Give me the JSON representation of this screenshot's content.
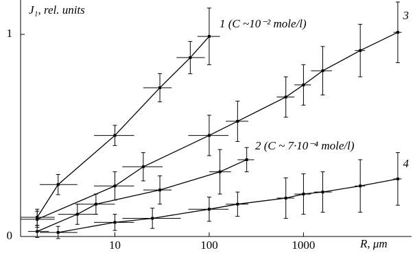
{
  "chart_data": {
    "type": "scatter",
    "y_label": "J₁, rel. units",
    "x_label": "R, μm",
    "xlim": [
      1,
      14000
    ],
    "ylim": [
      0,
      1.17
    ],
    "log_x": true,
    "xticks": [
      10,
      100,
      1000
    ],
    "yticks": [
      0,
      1
    ],
    "series": [
      {
        "name": "1 (C ~10⁻² mole/l)",
        "color": "#000",
        "x": [
          1.5,
          2.5,
          10,
          30,
          63,
          100
        ],
        "values": [
          0.095,
          0.257,
          0.5,
          0.736,
          0.885,
          0.99
        ],
        "yerr": [
          0.04,
          0.05,
          0.05,
          0.07,
          0.08,
          0.14
        ],
        "x_low": [
          1,
          1.6,
          6,
          20,
          45,
          75
        ],
        "x_high": [
          2.3,
          4,
          16,
          40,
          90,
          130
        ]
      },
      {
        "name": "2 (C ~ 7·10⁻⁴ mole/l)",
        "color": "#000",
        "x": [
          1.5,
          4,
          6.3,
          30,
          130,
          250
        ],
        "values": [
          0.025,
          0.11,
          0.16,
          0.23,
          0.32,
          0.38
        ],
        "yerr": [
          0.03,
          0.05,
          0.05,
          0.07,
          0.11,
          0.06
        ],
        "x_low": [
          1.2,
          2.5,
          4,
          20,
          100,
          200
        ],
        "x_high": [
          2,
          6.5,
          10,
          40,
          170,
          300
        ]
      },
      {
        "name": "3",
        "color": "#000",
        "x": [
          1.5,
          10,
          20,
          100,
          200,
          650,
          1000,
          1600,
          4000,
          10000
        ],
        "values": [
          0.085,
          0.25,
          0.345,
          0.5,
          0.57,
          0.69,
          0.75,
          0.82,
          0.92,
          1.01
        ],
        "yerr": [
          0.04,
          0.07,
          0.07,
          0.1,
          0.1,
          0.1,
          0.1,
          0.12,
          0.13,
          0.15
        ],
        "x_low": [
          1,
          6,
          12,
          60,
          150,
          520,
          800,
          1200,
          3500,
          9000
        ],
        "x_high": [
          2.3,
          16,
          32,
          160,
          260,
          800,
          1200,
          2000,
          4500,
          11000
        ]
      },
      {
        "name": "4",
        "color": "#000",
        "x": [
          2.5,
          10,
          25,
          100,
          200,
          650,
          1000,
          1600,
          4000,
          10000
        ],
        "values": [
          0.02,
          0.07,
          0.09,
          0.135,
          0.16,
          0.19,
          0.21,
          0.22,
          0.25,
          0.285
        ],
        "yerr": [
          0.03,
          0.04,
          0.05,
          0.06,
          0.06,
          0.1,
          0.1,
          0.1,
          0.13,
          0.13
        ],
        "x_low": [
          1.6,
          6,
          12,
          60,
          150,
          520,
          800,
          1300,
          3500,
          9000
        ],
        "x_high": [
          4,
          16,
          50,
          160,
          260,
          800,
          1200,
          2000,
          4500,
          11000
        ]
      }
    ]
  }
}
